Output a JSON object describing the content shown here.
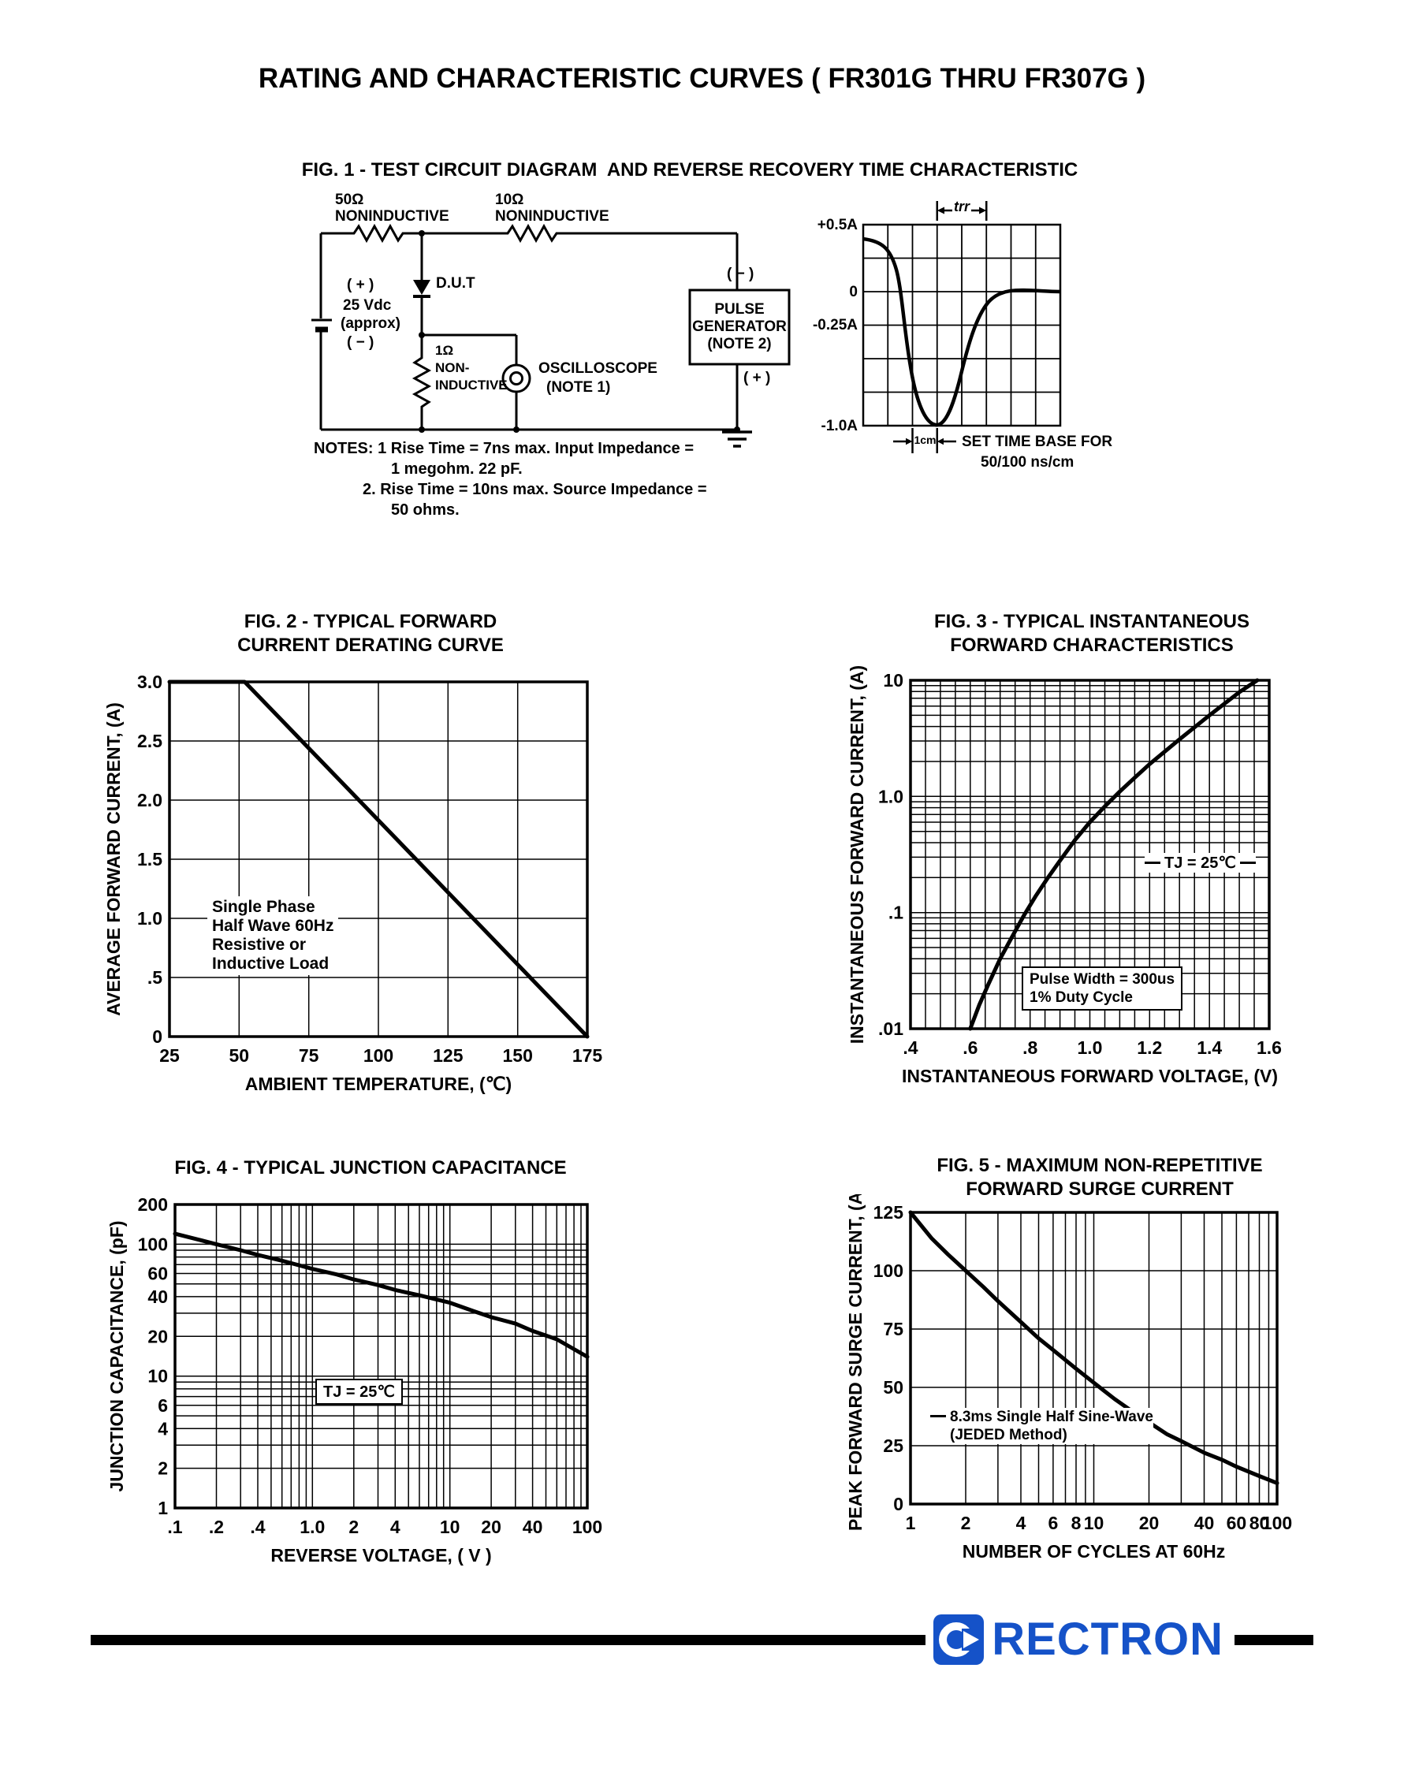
{
  "page_title": "RATING AND CHARACTERISTIC CURVES ( FR301G THRU FR307G )",
  "fig1": {
    "heading": "FIG. 1 - TEST CIRCUIT DIAGRAM  AND REVERSE RECOVERY TIME CHARACTERISTIC",
    "circuit": {
      "r50_value": "50Ω",
      "r50_type": "NONINDUCTIVE",
      "r10_value": "10Ω",
      "r10_type": "NONINDUCTIVE",
      "battery_plus": "( + )",
      "battery_voltage": "25 Vdc",
      "battery_approx": "(approx)",
      "battery_minus": "( − )",
      "dut_label": "D.U.T",
      "r1_value": "1Ω",
      "r1_line2": "NON-",
      "r1_line3": "INDUCTIVE",
      "scope_line1": "OSCILLOSCOPE",
      "scope_line2": "(NOTE 1)",
      "pg_minus": "( − )",
      "pg_line1": "PULSE",
      "pg_line2": "GENERATOR",
      "pg_line3": "(NOTE 2)",
      "pg_plus": "( + )"
    },
    "notes": {
      "line1": "NOTES: 1  Rise Time = 7ns max. Input Impedance =",
      "line2": "1 megohm. 22 pF.",
      "line3": "2. Rise Time = 10ns max. Source Impedance =",
      "line4": "50 ohms."
    },
    "waveform": {
      "label_plus05": "+0.5A",
      "label_zero": "0",
      "label_minus025": "-0.25A",
      "label_minus1": "-1.0A",
      "trr_label": "trr",
      "cm_label": "1cm",
      "timebase_line1": "SET TIME BASE FOR",
      "timebase_line2": "50/100 ns/cm"
    }
  },
  "chart_data": [
    {
      "id": "fig2",
      "type": "line",
      "title_line1": "FIG. 2 - TYPICAL FORWARD",
      "title_line2": "CURRENT DERATING CURVE",
      "xlabel": "AMBIENT TEMPERATURE, (℃)",
      "ylabel": "AVERAGE FORWARD  CURRENT, (A)",
      "x_scale": "linear",
      "y_scale": "linear",
      "xlim": [
        25,
        175
      ],
      "ylim": [
        0,
        3
      ],
      "x_grid": [
        25,
        50,
        75,
        100,
        125,
        150,
        175
      ],
      "y_grid": [
        0,
        0.5,
        1,
        1.5,
        2,
        2.5,
        3
      ],
      "x_ticks": [
        {
          "v": 25,
          "label": "25"
        },
        {
          "v": 50,
          "label": "50"
        },
        {
          "v": 75,
          "label": "75"
        },
        {
          "v": 100,
          "label": "100"
        },
        {
          "v": 125,
          "label": "125"
        },
        {
          "v": 150,
          "label": "150"
        },
        {
          "v": 175,
          "label": "175"
        }
      ],
      "y_ticks": [
        {
          "v": 3,
          "label": "3.0"
        },
        {
          "v": 2.5,
          "label": "2.5"
        },
        {
          "v": 2,
          "label": "2.0"
        },
        {
          "v": 1.5,
          "label": "1.5"
        },
        {
          "v": 1,
          "label": "1.0"
        },
        {
          "v": 0.5,
          "label": ".5"
        },
        {
          "v": 0,
          "label": "0"
        }
      ],
      "points": [
        [
          25,
          3
        ],
        [
          52,
          3
        ],
        [
          175,
          0
        ]
      ],
      "annotation": {
        "line1": "Single Phase",
        "line2": "Half Wave 60Hz",
        "line3": "Resistive or",
        "line4": "Inductive Load"
      }
    },
    {
      "id": "fig3",
      "type": "line",
      "title_line1": "FIG. 3 - TYPICAL INSTANTANEOUS",
      "title_line2": "FORWARD CHARACTERISTICS",
      "xlabel": "INSTANTANEOUS FORWARD VOLTAGE, (V)",
      "ylabel": "INSTANTANEOUS FORWARD CURRENT, (A)",
      "x_scale": "linear",
      "y_scale": "log",
      "xlim": [
        0.4,
        1.6
      ],
      "ylim": [
        0.01,
        10
      ],
      "x_grid": [
        0.4,
        0.45,
        0.5,
        0.55,
        0.6,
        0.65,
        0.7,
        0.75,
        0.8,
        0.85,
        0.9,
        0.95,
        1,
        1.05,
        1.1,
        1.15,
        1.2,
        1.25,
        1.3,
        1.35,
        1.4,
        1.45,
        1.5,
        1.55,
        1.6
      ],
      "x_ticks": [
        {
          "v": 0.4,
          "label": ".4"
        },
        {
          "v": 0.6,
          "label": ".6"
        },
        {
          "v": 0.8,
          "label": ".8"
        },
        {
          "v": 1,
          "label": "1.0"
        },
        {
          "v": 1.2,
          "label": "1.2"
        },
        {
          "v": 1.4,
          "label": "1.4"
        },
        {
          "v": 1.6,
          "label": "1.6"
        }
      ],
      "y_ticks": [
        {
          "v": 10,
          "label": "10"
        },
        {
          "v": 1,
          "label": "1.0"
        },
        {
          "v": 0.1,
          "label": ".1"
        },
        {
          "v": 0.01,
          "label": ".01"
        }
      ],
      "points": [
        [
          0.6,
          0.01
        ],
        [
          0.63,
          0.016
        ],
        [
          0.66,
          0.024
        ],
        [
          0.7,
          0.04
        ],
        [
          0.74,
          0.062
        ],
        [
          0.78,
          0.095
        ],
        [
          0.82,
          0.14
        ],
        [
          0.86,
          0.2
        ],
        [
          0.9,
          0.28
        ],
        [
          0.95,
          0.42
        ],
        [
          1,
          0.6
        ],
        [
          1.05,
          0.82
        ],
        [
          1.1,
          1.1
        ],
        [
          1.15,
          1.45
        ],
        [
          1.2,
          1.9
        ],
        [
          1.3,
          3.1
        ],
        [
          1.4,
          5.0
        ],
        [
          1.5,
          7.9
        ],
        [
          1.56,
          10
        ]
      ],
      "annotation_tj": "TJ = 25℃",
      "annotation_pw1": "Pulse Width = 300us",
      "annotation_pw2": "1% Duty Cycle"
    },
    {
      "id": "fig4",
      "type": "line",
      "title_line1": "FIG. 4 - TYPICAL JUNCTION CAPACITANCE",
      "xlabel": "REVERSE VOLTAGE, ( V )",
      "ylabel": "JUNCTION CAPACITANCE, (pF)",
      "x_scale": "log",
      "y_scale": "log",
      "xlim": [
        0.1,
        100
      ],
      "ylim": [
        1,
        200
      ],
      "x_ticks": [
        {
          "v": 0.1,
          "label": ".1"
        },
        {
          "v": 0.2,
          "label": ".2"
        },
        {
          "v": 0.4,
          "label": ".4"
        },
        {
          "v": 1,
          "label": "1.0"
        },
        {
          "v": 2,
          "label": "2"
        },
        {
          "v": 4,
          "label": "4"
        },
        {
          "v": 10,
          "label": "10"
        },
        {
          "v": 20,
          "label": "20"
        },
        {
          "v": 40,
          "label": "40"
        },
        {
          "v": 100,
          "label": "100"
        }
      ],
      "y_ticks": [
        {
          "v": 200,
          "label": "200"
        },
        {
          "v": 100,
          "label": "100"
        },
        {
          "v": 60,
          "label": "60"
        },
        {
          "v": 40,
          "label": "40"
        },
        {
          "v": 20,
          "label": "20"
        },
        {
          "v": 10,
          "label": "10"
        },
        {
          "v": 6,
          "label": "6"
        },
        {
          "v": 4,
          "label": "4"
        },
        {
          "v": 2,
          "label": "2"
        },
        {
          "v": 1,
          "label": "1"
        }
      ],
      "points": [
        [
          0.1,
          120
        ],
        [
          0.15,
          108
        ],
        [
          0.2,
          100
        ],
        [
          0.3,
          90
        ],
        [
          0.4,
          83
        ],
        [
          0.6,
          75
        ],
        [
          1,
          65
        ],
        [
          1.5,
          59
        ],
        [
          2,
          54
        ],
        [
          3,
          49
        ],
        [
          4,
          45
        ],
        [
          6,
          41
        ],
        [
          10,
          36
        ],
        [
          15,
          31
        ],
        [
          20,
          28
        ],
        [
          30,
          25
        ],
        [
          40,
          22
        ],
        [
          60,
          19
        ],
        [
          80,
          16
        ],
        [
          100,
          14
        ]
      ],
      "annotation_tj": "TJ = 25℃"
    },
    {
      "id": "fig5",
      "type": "line",
      "title_line1": "FIG. 5 - MAXIMUM NON-REPETITIVE",
      "title_line2": "FORWARD SURGE CURRENT",
      "xlabel": "NUMBER OF CYCLES AT 60Hz",
      "ylabel": "PEAK FORWARD SURGE CURRENT, (A)",
      "x_scale": "log",
      "y_scale": "linear",
      "xlim": [
        1,
        100
      ],
      "ylim": [
        0,
        125
      ],
      "y_grid": [
        0,
        25,
        50,
        75,
        100,
        125
      ],
      "x_ticks": [
        {
          "v": 1,
          "label": "1"
        },
        {
          "v": 2,
          "label": "2"
        },
        {
          "v": 4,
          "label": "4"
        },
        {
          "v": 6,
          "label": "6"
        },
        {
          "v": 8,
          "label": "8"
        },
        {
          "v": 10,
          "label": "10"
        },
        {
          "v": 20,
          "label": "20"
        },
        {
          "v": 40,
          "label": "40"
        },
        {
          "v": 60,
          "label": "60"
        },
        {
          "v": 80,
          "label": "80"
        },
        {
          "v": 100,
          "label": "100"
        }
      ],
      "y_ticks": [
        {
          "v": 125,
          "label": "125"
        },
        {
          "v": 100,
          "label": "100"
        },
        {
          "v": 75,
          "label": "75"
        },
        {
          "v": 50,
          "label": "50"
        },
        {
          "v": 25,
          "label": "25"
        },
        {
          "v": 0,
          "label": "0"
        }
      ],
      "points": [
        [
          1,
          125
        ],
        [
          1.3,
          114
        ],
        [
          1.6,
          107
        ],
        [
          2,
          100
        ],
        [
          2.5,
          93
        ],
        [
          3,
          87
        ],
        [
          4,
          78
        ],
        [
          5,
          71
        ],
        [
          6,
          66
        ],
        [
          8,
          58
        ],
        [
          10,
          52
        ],
        [
          13,
          45
        ],
        [
          16,
          40
        ],
        [
          20,
          35
        ],
        [
          25,
          30
        ],
        [
          30,
          27
        ],
        [
          40,
          22
        ],
        [
          50,
          19
        ],
        [
          60,
          16
        ],
        [
          80,
          12
        ],
        [
          100,
          9
        ]
      ],
      "annotation_line1": "8.3ms Single Half Sine-Wave",
      "annotation_line2": "(JEDED Method)"
    }
  ],
  "footer": {
    "brand": "RECTRON"
  }
}
